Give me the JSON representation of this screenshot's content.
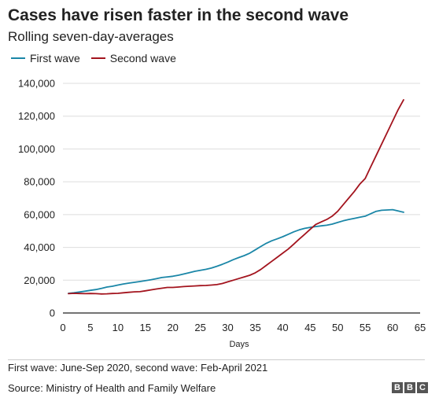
{
  "header": {
    "title": "Cases have risen faster in the second wave",
    "subtitle": "Rolling seven-day-averages"
  },
  "footer": {
    "note": "First wave: June-Sep 2020, second wave: Feb-April 2021",
    "source": "Source: Ministry of Health and Family Welfare",
    "logo_letters": [
      "B",
      "B",
      "C"
    ]
  },
  "colors": {
    "first_wave": "#1a86a7",
    "second_wave": "#a3141e",
    "gridline": "#dddddd",
    "axis": "#222222"
  },
  "chart_data": {
    "type": "line",
    "title": "Cases have risen faster in the second wave",
    "subtitle": "Rolling seven-day-averages",
    "xlabel": "Days",
    "ylabel": "",
    "xlim": [
      0,
      65
    ],
    "ylim": [
      0,
      140000
    ],
    "xticks": [
      0,
      5,
      10,
      15,
      20,
      25,
      30,
      35,
      40,
      45,
      50,
      55,
      60,
      65
    ],
    "yticks": [
      0,
      20000,
      40000,
      60000,
      80000,
      100000,
      120000,
      140000
    ],
    "ytick_labels": [
      "0",
      "20,000",
      "40,000",
      "60,000",
      "80,000",
      "100,000",
      "120,000",
      "140,000"
    ],
    "grid": "horizontal",
    "legend_position": "top-left",
    "series": [
      {
        "name": "First wave",
        "color": "#1a86a7",
        "x": [
          1,
          2,
          3,
          4,
          5,
          6,
          7,
          8,
          9,
          10,
          11,
          12,
          13,
          14,
          15,
          16,
          17,
          18,
          19,
          20,
          21,
          22,
          23,
          24,
          25,
          26,
          27,
          28,
          29,
          30,
          31,
          32,
          33,
          34,
          35,
          36,
          37,
          38,
          39,
          40,
          41,
          42,
          43,
          44,
          45,
          46,
          47,
          48,
          49,
          50,
          51,
          52,
          53,
          54,
          55,
          56,
          57,
          58,
          59,
          60,
          61,
          62
        ],
        "y": [
          12000,
          12300,
          12800,
          13300,
          13800,
          14300,
          15000,
          15800,
          16300,
          17000,
          17700,
          18200,
          18700,
          19200,
          19700,
          20300,
          20900,
          21600,
          22000,
          22400,
          23000,
          23800,
          24600,
          25400,
          26000,
          26600,
          27400,
          28500,
          29700,
          31000,
          32500,
          33800,
          35000,
          36500,
          38500,
          40500,
          42500,
          44000,
          45200,
          46500,
          48000,
          49500,
          50700,
          51600,
          52200,
          52700,
          53100,
          53500,
          54200,
          55200,
          56200,
          57000,
          57700,
          58400,
          59000,
          60500,
          62000,
          62600,
          62800,
          63000,
          62200,
          61400
        ]
      },
      {
        "name": "Second wave",
        "color": "#a3141e",
        "x": [
          1,
          2,
          3,
          4,
          5,
          6,
          7,
          8,
          9,
          10,
          11,
          12,
          13,
          14,
          15,
          16,
          17,
          18,
          19,
          20,
          21,
          22,
          23,
          24,
          25,
          26,
          27,
          28,
          29,
          30,
          31,
          32,
          33,
          34,
          35,
          36,
          37,
          38,
          39,
          40,
          41,
          42,
          43,
          44,
          45,
          46,
          47,
          48,
          49,
          50,
          51,
          52,
          53,
          54,
          55,
          56,
          57,
          58,
          59,
          60,
          61,
          62
        ],
        "y": [
          11800,
          12000,
          11900,
          11800,
          11900,
          11800,
          11600,
          11700,
          11900,
          12000,
          12300,
          12600,
          12900,
          13000,
          13500,
          14100,
          14600,
          15100,
          15600,
          15600,
          15800,
          16100,
          16300,
          16500,
          16700,
          16800,
          17000,
          17300,
          18000,
          19000,
          20000,
          21000,
          22000,
          23000,
          24500,
          26500,
          29000,
          31500,
          34000,
          36500,
          39000,
          42000,
          45000,
          48000,
          51000,
          54000,
          55500,
          57000,
          59000,
          62000,
          66000,
          70000,
          74000,
          78500,
          82000,
          89000,
          96000,
          103000,
          110000,
          117000,
          124000,
          130000
        ]
      }
    ]
  }
}
